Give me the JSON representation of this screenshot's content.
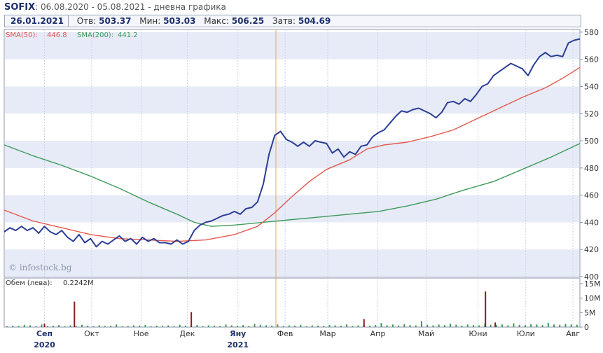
{
  "header": {
    "symbol": "SOFIX",
    "subtitle": ": 06.08.2020 - 05.08.2021 - дневна графика"
  },
  "infobar": {
    "date": "26.01.2021",
    "open_label": "Отв:",
    "open": "503.37",
    "low_label": "Мин:",
    "low": "503.03",
    "high_label": "Макс:",
    "high": "506.25",
    "close_label": "Затв:",
    "close": "504.69"
  },
  "legend": {
    "sma50_label": "SMA(50):",
    "sma50_value": "446.8",
    "sma200_label": "SMA(200):",
    "sma200_value": "441.2",
    "volume_label": "Обем (лева):",
    "volume_value": "0.2242M",
    "watermark": "© infostock.bg"
  },
  "colors": {
    "price": "#2c3e96",
    "sma50": "#e2574c",
    "sma200": "#3f9a5a",
    "band": "#e6ebf7",
    "grid": "#c9d2ea",
    "volume": "#3f9a5a",
    "volume_spike": "#8b1a1a",
    "cursor": "#f0a35e"
  },
  "chart_data": {
    "type": "line",
    "title": "SOFIX",
    "period": "06.08.2020 - 05.08.2021",
    "y_ticks": [
      400,
      420,
      440,
      460,
      480,
      500,
      520,
      540,
      560,
      580
    ],
    "ylim": [
      400,
      582
    ],
    "volume_ticks": [
      "0",
      "5M",
      "10M",
      "15M"
    ],
    "volume_ylim": [
      0,
      15
    ],
    "x_ticks": [
      {
        "label": "Сеп",
        "bold": true,
        "year": "2020",
        "t": 0.07
      },
      {
        "label": "Окт",
        "bold": false,
        "year": "",
        "t": 0.152
      },
      {
        "label": "Ное",
        "bold": false,
        "year": "",
        "t": 0.238
      },
      {
        "label": "Дек",
        "bold": false,
        "year": "",
        "t": 0.318
      },
      {
        "label": "Яну",
        "bold": true,
        "year": "2021",
        "t": 0.406
      },
      {
        "label": "Фев",
        "bold": false,
        "year": "",
        "t": 0.488
      },
      {
        "label": "Мар",
        "bold": false,
        "year": "",
        "t": 0.562
      },
      {
        "label": "Апр",
        "bold": false,
        "year": "",
        "t": 0.649
      },
      {
        "label": "Май",
        "bold": false,
        "year": "",
        "t": 0.733
      },
      {
        "label": "Юни",
        "bold": false,
        "year": "",
        "t": 0.823
      },
      {
        "label": "Юли",
        "bold": false,
        "year": "",
        "t": 0.906
      },
      {
        "label": "Авг",
        "bold": false,
        "year": "",
        "t": 0.988
      }
    ],
    "cursor_t": 0.472,
    "series": [
      {
        "name": "SOFIX",
        "points": [
          [
            0.0,
            433
          ],
          [
            0.01,
            436
          ],
          [
            0.02,
            434
          ],
          [
            0.03,
            437
          ],
          [
            0.04,
            434
          ],
          [
            0.05,
            436
          ],
          [
            0.06,
            432
          ],
          [
            0.07,
            437
          ],
          [
            0.08,
            433
          ],
          [
            0.09,
            431
          ],
          [
            0.1,
            434
          ],
          [
            0.11,
            429
          ],
          [
            0.12,
            426
          ],
          [
            0.13,
            431
          ],
          [
            0.14,
            425
          ],
          [
            0.15,
            428
          ],
          [
            0.16,
            422
          ],
          [
            0.17,
            426
          ],
          [
            0.18,
            424
          ],
          [
            0.19,
            427
          ],
          [
            0.2,
            430
          ],
          [
            0.21,
            426
          ],
          [
            0.22,
            428
          ],
          [
            0.23,
            424
          ],
          [
            0.24,
            429
          ],
          [
            0.25,
            426
          ],
          [
            0.26,
            428
          ],
          [
            0.27,
            425
          ],
          [
            0.28,
            425
          ],
          [
            0.29,
            424
          ],
          [
            0.3,
            427
          ],
          [
            0.31,
            424
          ],
          [
            0.32,
            426
          ],
          [
            0.33,
            434
          ],
          [
            0.34,
            438
          ],
          [
            0.35,
            440
          ],
          [
            0.36,
            441
          ],
          [
            0.37,
            443
          ],
          [
            0.38,
            445
          ],
          [
            0.39,
            446
          ],
          [
            0.4,
            448
          ],
          [
            0.41,
            446
          ],
          [
            0.42,
            450
          ],
          [
            0.43,
            451
          ],
          [
            0.44,
            455
          ],
          [
            0.45,
            468
          ],
          [
            0.46,
            490
          ],
          [
            0.47,
            504
          ],
          [
            0.48,
            507
          ],
          [
            0.49,
            501
          ],
          [
            0.5,
            499
          ],
          [
            0.51,
            496
          ],
          [
            0.52,
            499
          ],
          [
            0.53,
            496
          ],
          [
            0.54,
            500
          ],
          [
            0.55,
            499
          ],
          [
            0.56,
            498
          ],
          [
            0.57,
            491
          ],
          [
            0.58,
            494
          ],
          [
            0.59,
            488
          ],
          [
            0.6,
            492
          ],
          [
            0.61,
            490
          ],
          [
            0.62,
            496
          ],
          [
            0.63,
            497
          ],
          [
            0.64,
            503
          ],
          [
            0.65,
            506
          ],
          [
            0.66,
            508
          ],
          [
            0.67,
            513
          ],
          [
            0.68,
            518
          ],
          [
            0.69,
            522
          ],
          [
            0.7,
            521
          ],
          [
            0.71,
            523
          ],
          [
            0.72,
            524
          ],
          [
            0.73,
            522
          ],
          [
            0.74,
            520
          ],
          [
            0.75,
            517
          ],
          [
            0.76,
            521
          ],
          [
            0.77,
            528
          ],
          [
            0.78,
            529
          ],
          [
            0.79,
            527
          ],
          [
            0.8,
            531
          ],
          [
            0.81,
            529
          ],
          [
            0.82,
            534
          ],
          [
            0.83,
            540
          ],
          [
            0.84,
            542
          ],
          [
            0.85,
            548
          ],
          [
            0.86,
            551
          ],
          [
            0.87,
            554
          ],
          [
            0.88,
            557
          ],
          [
            0.89,
            555
          ],
          [
            0.9,
            553
          ],
          [
            0.91,
            548
          ],
          [
            0.92,
            556
          ],
          [
            0.93,
            562
          ],
          [
            0.94,
            565
          ],
          [
            0.95,
            562
          ],
          [
            0.96,
            563
          ],
          [
            0.97,
            562
          ],
          [
            0.98,
            572
          ],
          [
            0.99,
            574
          ],
          [
            1.0,
            575
          ]
        ]
      },
      {
        "name": "SMA(50)",
        "points": [
          [
            0.0,
            449
          ],
          [
            0.05,
            441
          ],
          [
            0.1,
            436
          ],
          [
            0.15,
            431
          ],
          [
            0.2,
            428
          ],
          [
            0.25,
            427
          ],
          [
            0.3,
            426
          ],
          [
            0.35,
            427
          ],
          [
            0.4,
            431
          ],
          [
            0.44,
            437
          ],
          [
            0.47,
            447
          ],
          [
            0.5,
            459
          ],
          [
            0.53,
            470
          ],
          [
            0.56,
            479
          ],
          [
            0.6,
            486
          ],
          [
            0.63,
            494
          ],
          [
            0.66,
            497
          ],
          [
            0.7,
            499
          ],
          [
            0.74,
            503
          ],
          [
            0.78,
            508
          ],
          [
            0.82,
            516
          ],
          [
            0.86,
            524
          ],
          [
            0.9,
            532
          ],
          [
            0.94,
            539
          ],
          [
            0.97,
            546
          ],
          [
            1.0,
            554
          ]
        ]
      },
      {
        "name": "SMA(200)",
        "points": [
          [
            0.0,
            497
          ],
          [
            0.05,
            489
          ],
          [
            0.1,
            482
          ],
          [
            0.15,
            474
          ],
          [
            0.2,
            465
          ],
          [
            0.25,
            455
          ],
          [
            0.3,
            446
          ],
          [
            0.33,
            440
          ],
          [
            0.36,
            437
          ],
          [
            0.4,
            438
          ],
          [
            0.45,
            440
          ],
          [
            0.5,
            442
          ],
          [
            0.55,
            444
          ],
          [
            0.6,
            446
          ],
          [
            0.65,
            448
          ],
          [
            0.7,
            452
          ],
          [
            0.75,
            457
          ],
          [
            0.8,
            464
          ],
          [
            0.85,
            470
          ],
          [
            0.9,
            479
          ],
          [
            0.95,
            488
          ],
          [
            1.0,
            498
          ]
        ]
      }
    ],
    "volume_spikes": [
      {
        "t": 0.07,
        "v": 1.2
      },
      {
        "t": 0.122,
        "v": 8.8
      },
      {
        "t": 0.325,
        "v": 5.2
      },
      {
        "t": 0.625,
        "v": 2.8
      },
      {
        "t": 0.836,
        "v": 12.3
      },
      {
        "t": 0.853,
        "v": 1.6
      }
    ],
    "volume_small": [
      0.3,
      0.5,
      0.4,
      0.8,
      0.6,
      0.3,
      0.9,
      0.4,
      0.5,
      0.7,
      0.3,
      0.6,
      0.4,
      0.8,
      0.5,
      0.3,
      0.6,
      0.4,
      0.5,
      0.9,
      0.3,
      0.4,
      0.6,
      0.5,
      0.7,
      0.3,
      0.5,
      0.4,
      0.6,
      0.3,
      0.8,
      0.5,
      0.4,
      0.7,
      0.3,
      0.6,
      0.5,
      0.4,
      0.9,
      0.6,
      0.5,
      0.7,
      0.4,
      1.1,
      0.8,
      0.6,
      0.5,
      0.9,
      0.4,
      0.6,
      0.5,
      0.8,
      0.3,
      0.6,
      0.5,
      0.4,
      0.7,
      0.6,
      0.5,
      0.9,
      0.4,
      0.6,
      0.8,
      0.5,
      0.7,
      1.4,
      0.6,
      0.9,
      0.5,
      1.0,
      0.7,
      0.6,
      2.1,
      0.8,
      0.6,
      0.9,
      0.7,
      1.2,
      0.8,
      0.5,
      0.9,
      0.7,
      0.6,
      1.1,
      0.8,
      0.7,
      0.9,
      0.6,
      1.3,
      0.8,
      0.7,
      1.0,
      0.9,
      0.7,
      1.5,
      0.9,
      0.8,
      1.1,
      0.9,
      0.8
    ]
  }
}
